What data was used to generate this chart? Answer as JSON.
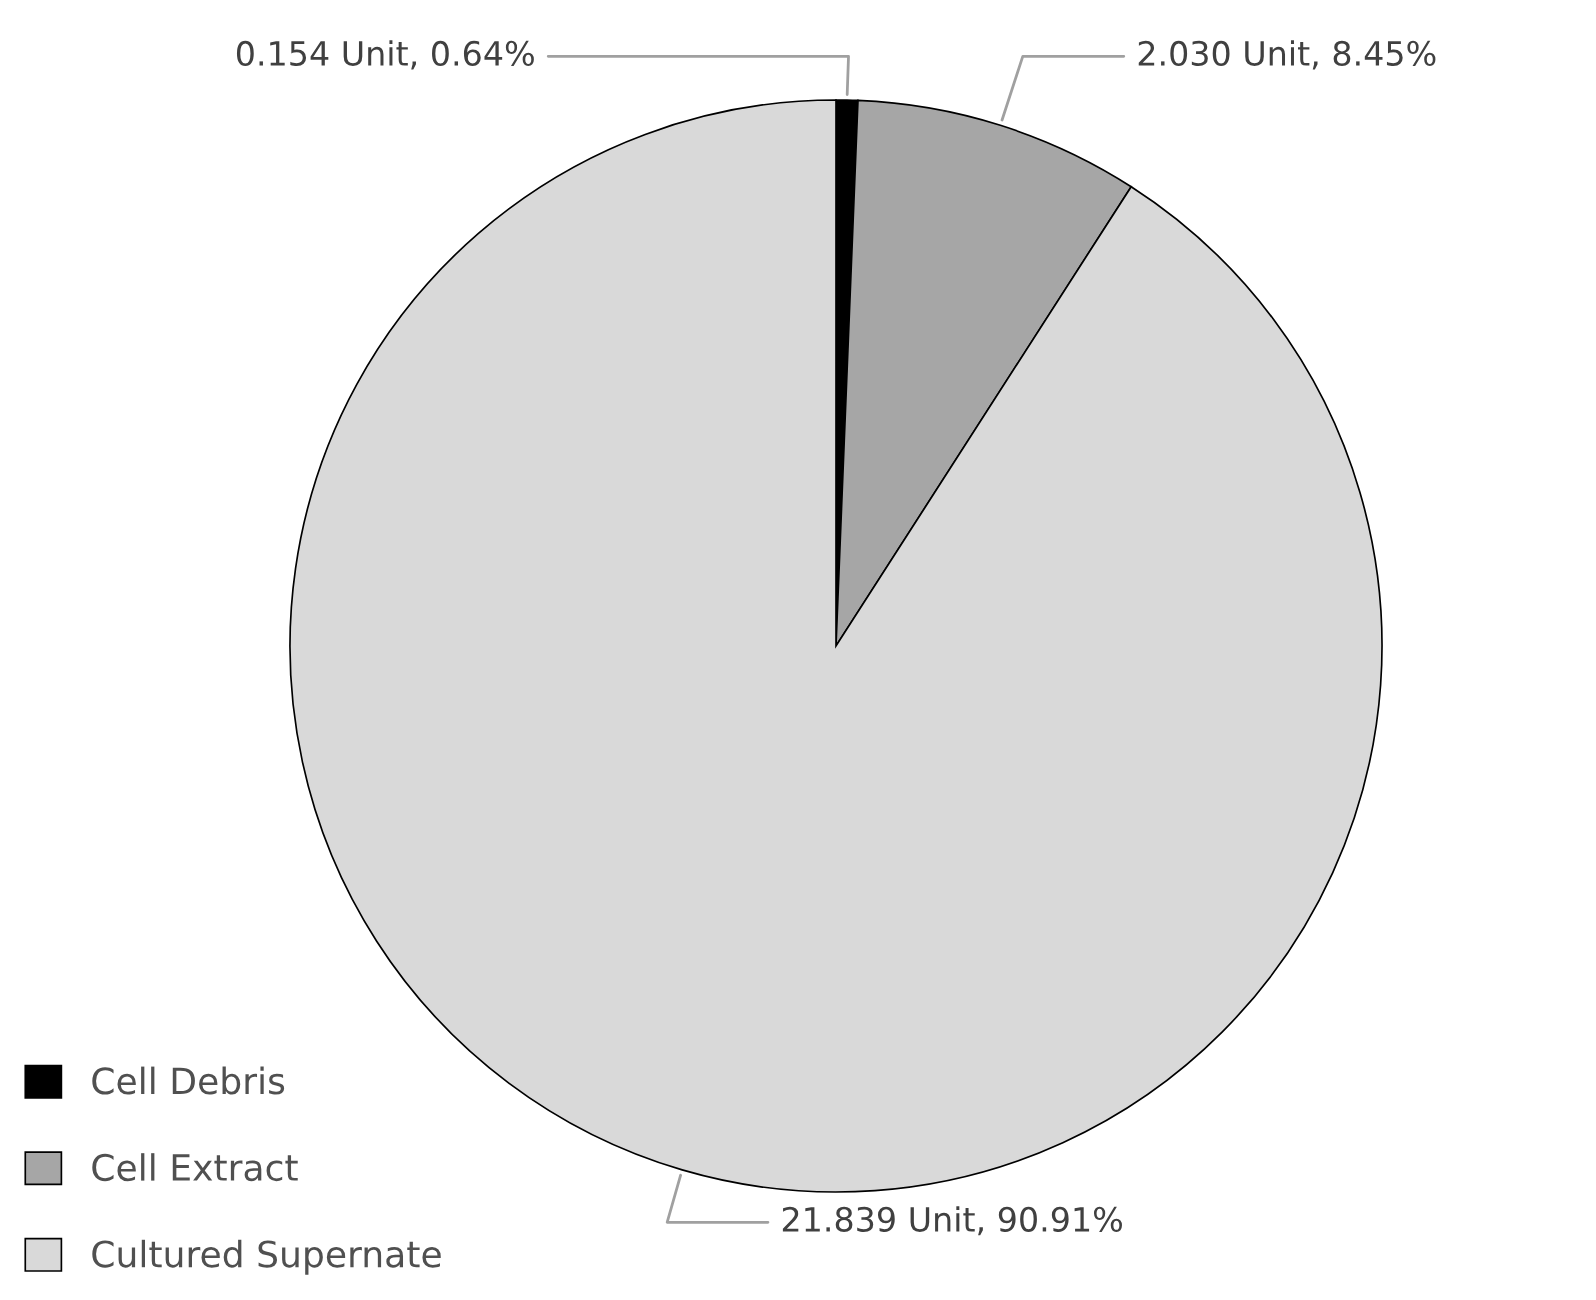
{
  "chart_data": {
    "type": "pie",
    "categories": [
      "Cell Debris",
      "Cell Extract",
      "Cultured Supernate"
    ],
    "values": [
      0.154,
      2.03,
      21.839
    ],
    "colors": [
      "#000000",
      "#a6a6a6",
      "#d9d9d9"
    ],
    "value_labels": [
      "0.154 Unit, 0.64%",
      "2.030 Unit, 8.45%",
      "21.839 Unit, 90.91%"
    ],
    "legend": "bottom left"
  }
}
